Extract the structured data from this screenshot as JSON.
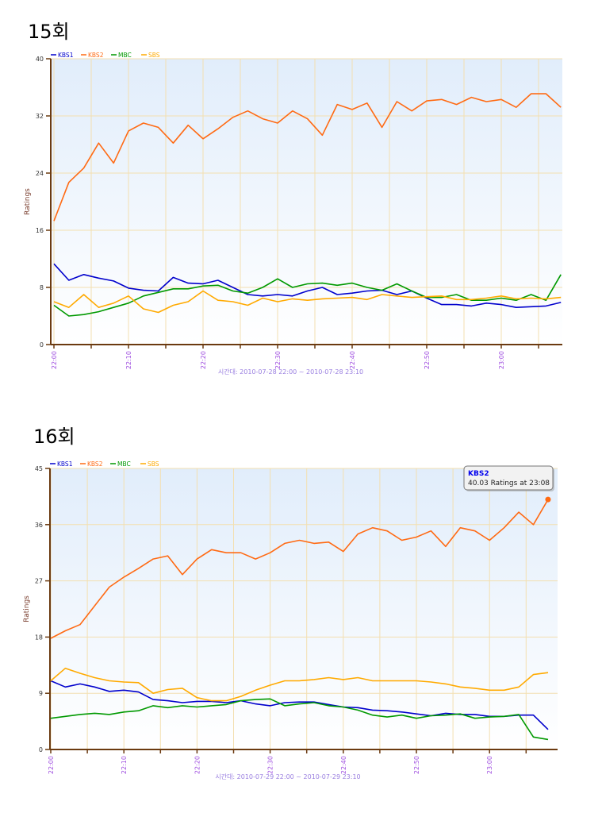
{
  "chart_data": [
    {
      "type": "line",
      "title": "15회",
      "ylabel": "Ratings",
      "xlabel": "시간대: 2010-07-28 22:00 ~ 2010-07-28 23:10",
      "ylim": [
        0,
        40
      ],
      "yticks": [
        0,
        8,
        16,
        24,
        32,
        40
      ],
      "xticks": [
        "22:00",
        "22:10",
        "22:20",
        "22:30",
        "22:40",
        "22:50",
        "23:00"
      ],
      "x_minutes_step": 2,
      "legend": "top-left",
      "grid": true,
      "series": [
        {
          "name": "KBS1",
          "color": "#0000cc",
          "values": [
            11.3,
            9,
            9.8,
            9.3,
            8.9,
            7.9,
            7.6,
            7.5,
            9.4,
            8.6,
            8.5,
            9,
            8,
            7,
            6.8,
            7,
            6.8,
            7.5,
            8,
            7,
            7.2,
            7.5,
            7.6,
            7,
            7.5,
            6.5,
            5.6,
            5.6,
            5.4,
            5.8,
            5.6,
            5.2,
            5.3,
            5.4,
            5.9
          ]
        },
        {
          "name": "KBS2",
          "color": "#ff6a13",
          "values": [
            17.3,
            22.7,
            24.7,
            28.2,
            25.4,
            29.9,
            31,
            30.4,
            28.2,
            30.7,
            28.8,
            30.2,
            31.8,
            32.7,
            31.6,
            31,
            32.7,
            31.6,
            29.3,
            33.6,
            32.9,
            33.8,
            30.4,
            34,
            32.7,
            34.1,
            34.3,
            33.6,
            34.6,
            34,
            34.3,
            33.2,
            35.1,
            35.1,
            33.2
          ]
        },
        {
          "name": "MBC",
          "color": "#009900",
          "values": [
            5.5,
            4,
            4.2,
            4.6,
            5.2,
            5.8,
            6.8,
            7.3,
            7.8,
            7.8,
            8.2,
            8.3,
            7.5,
            7.2,
            8,
            9.2,
            8,
            8.5,
            8.6,
            8.3,
            8.6,
            8,
            7.6,
            8.5,
            7.5,
            6.6,
            6.6,
            7,
            6.2,
            6.2,
            6.5,
            6.2,
            7,
            6.2,
            9.8
          ]
        },
        {
          "name": "SBS",
          "color": "#ffaa00",
          "values": [
            6,
            5.2,
            7,
            5.2,
            5.8,
            6.8,
            5,
            4.5,
            5.5,
            6,
            7.5,
            6.2,
            6,
            5.5,
            6.5,
            6,
            6.4,
            6.2,
            6.4,
            6.5,
            6.6,
            6.3,
            7,
            6.8,
            6.6,
            6.7,
            6.8,
            6.3,
            6.3,
            6.5,
            6.8,
            6.4,
            6.5,
            6.4,
            6.6
          ]
        }
      ]
    },
    {
      "type": "line",
      "title": "16회",
      "ylabel": "Ratings",
      "xlabel": "시간대: 2010-07-29 22:00 ~ 2010-07-29 23:10",
      "ylim": [
        0,
        45
      ],
      "yticks": [
        0,
        9,
        18,
        27,
        36,
        45
      ],
      "xticks": [
        "22:00",
        "22:10",
        "22:20",
        "22:30",
        "22:40",
        "22:50",
        "23:00"
      ],
      "x_minutes_step": 2,
      "legend": "top-left",
      "grid": true,
      "tooltip": {
        "series": "KBS2",
        "text": "40.03 Ratings at 23:08",
        "index": 34
      },
      "series": [
        {
          "name": "KBS1",
          "color": "#0000cc",
          "values": [
            11,
            10,
            10.5,
            10,
            9.3,
            9.5,
            9.2,
            8,
            7.8,
            7.5,
            7.7,
            7.7,
            7.5,
            7.8,
            7.3,
            7,
            7.5,
            7.6,
            7.6,
            7.2,
            6.8,
            6.7,
            6.3,
            6.2,
            6,
            5.7,
            5.4,
            5.8,
            5.6,
            5.6,
            5.3,
            5.3,
            5.5,
            5.5,
            3.2
          ]
        },
        {
          "name": "KBS2",
          "color": "#ff6a13",
          "values": [
            17.8,
            19,
            20,
            23,
            26,
            27.6,
            29,
            30.5,
            31,
            28,
            30.5,
            32,
            31.5,
            31.5,
            30.5,
            31.5,
            33,
            33.5,
            33,
            33.2,
            31.7,
            34.5,
            35.5,
            35,
            33.5,
            34,
            35,
            32.5,
            35.5,
            35,
            33.5,
            35.5,
            38,
            36,
            40.03
          ]
        },
        {
          "name": "MBC",
          "color": "#009900",
          "values": [
            5,
            5.3,
            5.6,
            5.8,
            5.6,
            6,
            6.2,
            7,
            6.7,
            7,
            6.8,
            7,
            7.2,
            7.8,
            8,
            8.1,
            7,
            7.3,
            7.5,
            7,
            6.8,
            6.3,
            5.5,
            5.2,
            5.5,
            5,
            5.4,
            5.5,
            5.7,
            5,
            5.2,
            5.3,
            5.6,
            2,
            1.6
          ]
        },
        {
          "name": "SBS",
          "color": "#ffaa00",
          "values": [
            11,
            13,
            12.2,
            11.5,
            11,
            10.8,
            10.7,
            9,
            9.6,
            9.8,
            8.3,
            7.8,
            7.8,
            8.5,
            9.5,
            10.3,
            11,
            11,
            11.2,
            11.5,
            11.2,
            11.5,
            11,
            11,
            11,
            11,
            10.8,
            10.5,
            10,
            9.8,
            9.5,
            9.5,
            10,
            12,
            12.3
          ]
        }
      ]
    }
  ]
}
